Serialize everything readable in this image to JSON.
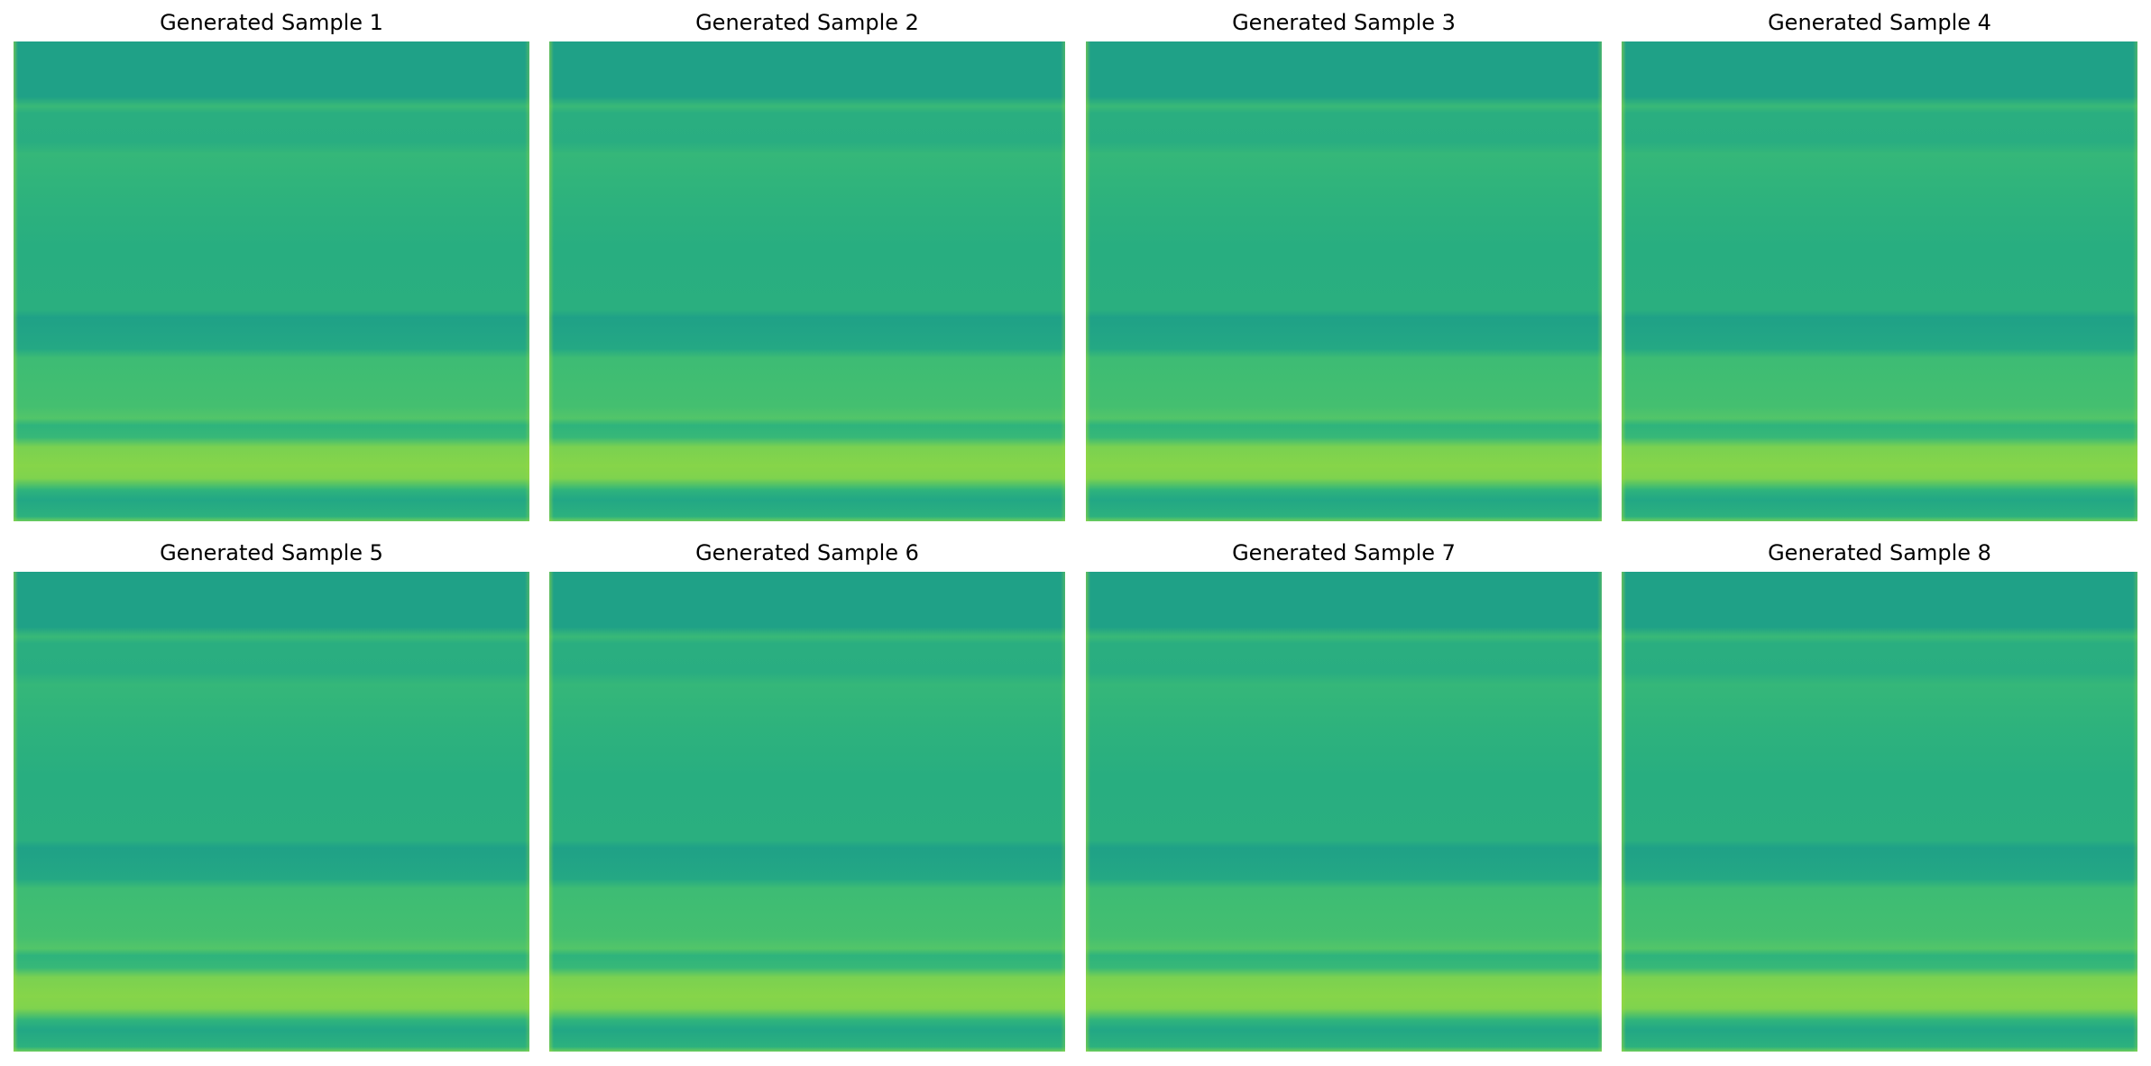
{
  "figure": {
    "panels": [
      {
        "title": "Generated Sample 1"
      },
      {
        "title": "Generated Sample 2"
      },
      {
        "title": "Generated Sample 3"
      },
      {
        "title": "Generated Sample 4"
      },
      {
        "title": "Generated Sample 5"
      },
      {
        "title": "Generated Sample 6"
      },
      {
        "title": "Generated Sample 7"
      },
      {
        "title": "Generated Sample 8"
      }
    ],
    "colormap": "viridis",
    "band_colors": {
      "dark_teal": "#1fa187",
      "teal": "#27ad81",
      "mid_green": "#35b779",
      "light_green": "#52c569",
      "bright_green": "#86d549",
      "edge_green": "#9fda3a"
    }
  }
}
